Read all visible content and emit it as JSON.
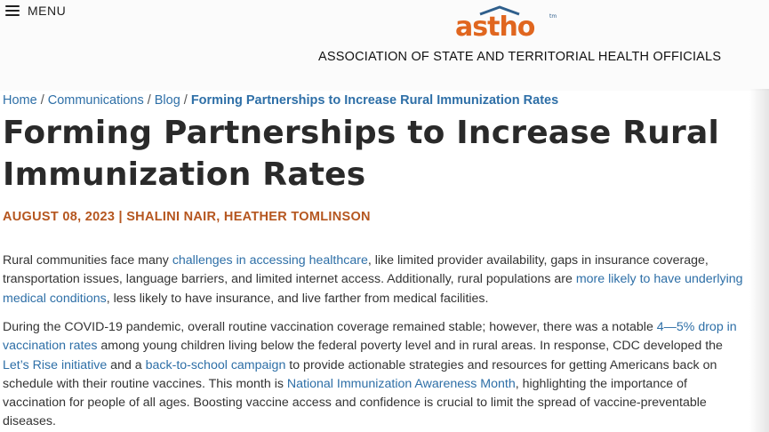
{
  "header": {
    "menu_label": "MENU",
    "logo_text": "astho",
    "logo_tm": "tm",
    "org_name": "ASSOCIATION OF STATE AND TERRITORIAL HEALTH OFFICIALS"
  },
  "breadcrumb": {
    "items": [
      "Home",
      "Communications",
      "Blog"
    ],
    "separator": "/",
    "current": "Forming Partnerships to Increase Rural Immunization Rates"
  },
  "article": {
    "title": "Forming Partnerships to Increase Rural Immunization Rates",
    "meta": "AUGUST 08, 2023 | SHALINI NAIR, HEATHER TOMLINSON",
    "p1": {
      "t1": "Rural communities face many ",
      "l1": "challenges in accessing healthcare",
      "t2": ", like limited provider availability, gaps in insurance coverage, transportation issues, language barriers, and limited internet access. Additionally, rural populations are ",
      "l2": "more likely to have underlying medical conditions",
      "t3": ", less likely to have insurance, and live farther from medical facilities."
    },
    "p2": {
      "t1": "During the COVID-19 pandemic, overall routine vaccination coverage remained stable; however, there was a notable ",
      "l1": "4—5% drop in vaccination rates",
      "t2": " among young children living below the federal poverty level and in rural areas. In response, CDC developed the ",
      "l2": "Let’s Rise initiative",
      "t3": " and a ",
      "l3": "back-to-school campaign",
      "t4": " to provide actionable strategies and resources for getting Americans back on schedule with their routine vaccines. This month is ",
      "l4": "National Immunization Awareness Month",
      "t5": ", highlighting the importance of vaccination for people of all ages. Boosting vaccine access and confidence is crucial to limit the spread of vaccine-preventable diseases."
    }
  },
  "colors": {
    "link": "#2e6fa7",
    "meta": "#b5561f",
    "logo_orange": "#e0661f",
    "logo_blue": "#2f5f8c"
  }
}
